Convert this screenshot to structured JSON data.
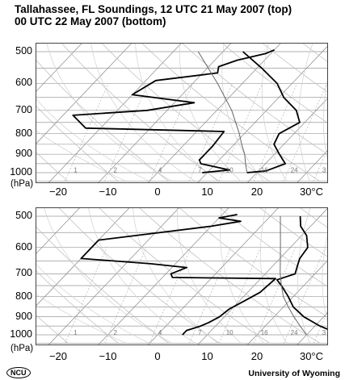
{
  "title_line1": "Tallahassee, FL Soundings, 12 UTC  21 May 2007 (top)",
  "title_line2": "00 UTC  22 May 2007 (bottom)",
  "footer": {
    "logo_text": "NCU",
    "credit": "University of Wyoming"
  },
  "chart_data": [
    {
      "type": "line",
      "x_unit": "°C",
      "y_unit": "hPa",
      "y_scale": "log",
      "y_ticks": [
        500,
        600,
        700,
        800,
        900,
        1000
      ],
      "x_ticks": [
        "−20",
        "−10",
        "0",
        "10",
        "20",
        "30°C"
      ],
      "ylabel": "(hPa)",
      "mixing_ratio_labels": [
        "1",
        "2",
        "4",
        "7",
        "10",
        "16",
        "24",
        "3"
      ],
      "series": [
        {
          "role": "dewpoint",
          "points": [
            {
              "p": 1000,
              "t": 9
            },
            {
              "p": 985,
              "t": 14
            },
            {
              "p": 950,
              "t": 7
            },
            {
              "p": 930,
              "t": 6
            },
            {
              "p": 860,
              "t": 6
            },
            {
              "p": 790,
              "t": 5.5
            },
            {
              "p": 775,
              "t": -23
            },
            {
              "p": 720,
              "t": -28
            },
            {
              "p": 700,
              "t": -14
            },
            {
              "p": 670,
              "t": -6
            },
            {
              "p": 640,
              "t": -20
            },
            {
              "p": 590,
              "t": -18
            },
            {
              "p": 565,
              "t": -7
            },
            {
              "p": 545,
              "t": -8
            },
            {
              "p": 525,
              "t": -5.5
            },
            {
              "p": 505,
              "t": -1
            },
            {
              "p": 495,
              "t": 0
            }
          ]
        },
        {
          "role": "temperature",
          "points": [
            {
              "p": 1000,
              "t": 18
            },
            {
              "p": 990,
              "t": 21.5
            },
            {
              "p": 950,
              "t": 24
            },
            {
              "p": 900,
              "t": 21
            },
            {
              "p": 850,
              "t": 18
            },
            {
              "p": 800,
              "t": 17
            },
            {
              "p": 750,
              "t": 19
            },
            {
              "p": 700,
              "t": 16
            },
            {
              "p": 650,
              "t": 11
            },
            {
              "p": 600,
              "t": 7
            },
            {
              "p": 550,
              "t": 1
            },
            {
              "p": 500,
              "t": -6
            }
          ]
        },
        {
          "role": "parcel",
          "points": [
            {
              "p": 1000,
              "t": 18
            },
            {
              "p": 950,
              "t": 16
            },
            {
              "p": 900,
              "t": 14
            },
            {
              "p": 850,
              "t": 11.5
            },
            {
              "p": 800,
              "t": 9
            },
            {
              "p": 700,
              "t": 3
            },
            {
              "p": 600,
              "t": -5
            },
            {
              "p": 500,
              "t": -15
            }
          ]
        }
      ]
    },
    {
      "type": "line",
      "x_unit": "°C",
      "y_unit": "hPa",
      "y_scale": "log",
      "y_ticks": [
        500,
        600,
        700,
        800,
        900,
        1000
      ],
      "x_ticks": [
        "−20",
        "−10",
        "0",
        "10",
        "20",
        "30°C"
      ],
      "ylabel": "(hPa)",
      "mixing_ratio_labels": [
        "1",
        "2",
        "4",
        "7",
        "10",
        "16",
        "24",
        "3"
      ],
      "series": [
        {
          "role": "dewpoint",
          "points": [
            {
              "p": 1000,
              "t": 5
            },
            {
              "p": 975,
              "t": 5
            },
            {
              "p": 950,
              "t": 7
            },
            {
              "p": 930,
              "t": 8
            },
            {
              "p": 900,
              "t": 9
            },
            {
              "p": 860,
              "t": 9.5
            },
            {
              "p": 820,
              "t": 11
            },
            {
              "p": 780,
              "t": 12.5
            },
            {
              "p": 720,
              "t": 13
            },
            {
              "p": 715,
              "t": -8
            },
            {
              "p": 700,
              "t": -9
            },
            {
              "p": 675,
              "t": -7
            },
            {
              "p": 660,
              "t": -15
            },
            {
              "p": 640,
              "t": -30
            },
            {
              "p": 575,
              "t": -30
            },
            {
              "p": 530,
              "t": -10
            },
            {
              "p": 515,
              "t": -5
            },
            {
              "p": 505,
              "t": -10
            },
            {
              "p": 495,
              "t": -7
            }
          ]
        },
        {
          "role": "temperature",
          "points": [
            {
              "p": 1000,
              "t": 37
            },
            {
              "p": 975,
              "t": 34
            },
            {
              "p": 950,
              "t": 31
            },
            {
              "p": 900,
              "t": 26
            },
            {
              "p": 850,
              "t": 22
            },
            {
              "p": 800,
              "t": 19
            },
            {
              "p": 750,
              "t": 15.5
            },
            {
              "p": 725,
              "t": 13.5
            },
            {
              "p": 700,
              "t": 16
            },
            {
              "p": 670,
              "t": 15
            },
            {
              "p": 640,
              "t": 14
            },
            {
              "p": 600,
              "t": 13.5
            },
            {
              "p": 560,
              "t": 11
            },
            {
              "p": 530,
              "t": 8
            },
            {
              "p": 500,
              "t": 6
            }
          ]
        },
        {
          "role": "parcel",
          "points": [
            {
              "p": 1000,
              "t": 30
            },
            {
              "p": 950,
              "t": 27
            },
            {
              "p": 900,
              "t": 24
            },
            {
              "p": 850,
              "t": 21
            },
            {
              "p": 800,
              "t": 18
            },
            {
              "p": 750,
              "t": 15.5
            },
            {
              "p": 700,
              "t": 13
            },
            {
              "p": 600,
              "t": 8
            },
            {
              "p": 500,
              "t": 2
            }
          ]
        }
      ]
    }
  ]
}
